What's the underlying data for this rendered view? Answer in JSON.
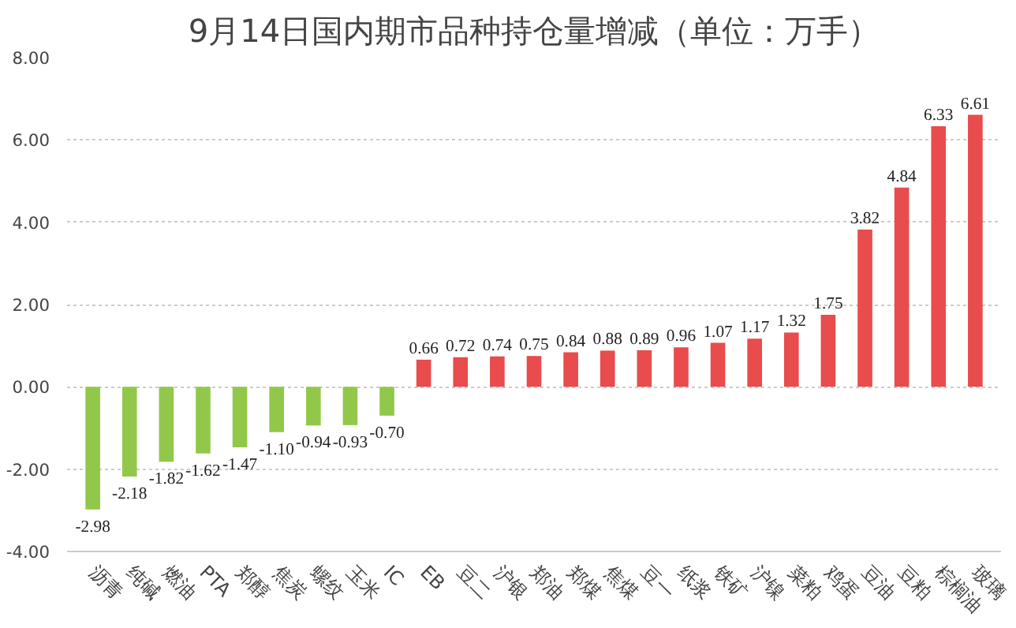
{
  "chart_data": {
    "type": "bar",
    "title": "9月14日国内期市品种持仓量增减（单位：万手）",
    "categories": [
      "沥青",
      "纯碱",
      "燃油",
      "PTA",
      "郑醇",
      "焦炭",
      "螺纹",
      "玉米",
      "IC",
      "EB",
      "豆二",
      "沪银",
      "郑油",
      "郑煤",
      "焦煤",
      "豆一",
      "纸浆",
      "铁矿",
      "沪镍",
      "菜粕",
      "鸡蛋",
      "豆油",
      "豆粕",
      "棕榈油",
      "玻璃"
    ],
    "values": [
      -2.98,
      -2.18,
      -1.82,
      -1.62,
      -1.47,
      -1.1,
      -0.94,
      -0.93,
      -0.7,
      0.66,
      0.72,
      0.74,
      0.75,
      0.84,
      0.88,
      0.89,
      0.96,
      1.07,
      1.17,
      1.32,
      1.75,
      3.82,
      4.84,
      6.33,
      6.61
    ],
    "value_labels": [
      "-2.98",
      "-2.18",
      "-1.82",
      "-1.62",
      "-1.47",
      "-1.10",
      "-0.94",
      "-0.93",
      "-0.70",
      "0.66",
      "0.72",
      "0.74",
      "0.75",
      "0.84",
      "0.88",
      "0.89",
      "0.96",
      "1.07",
      "1.17",
      "1.32",
      "1.75",
      "3.82",
      "4.84",
      "6.33",
      "6.61"
    ],
    "colors": [
      "#92c84a",
      "#92c84a",
      "#92c84a",
      "#92c84a",
      "#92c84a",
      "#92c84a",
      "#92c84a",
      "#92c84a",
      "#92c84a",
      "#e84c4c",
      "#e84c4c",
      "#e84c4c",
      "#e84c4c",
      "#e84c4c",
      "#e84c4c",
      "#e84c4c",
      "#e84c4c",
      "#e84c4c",
      "#e84c4c",
      "#e84c4c",
      "#e84c4c",
      "#e84c4c",
      "#e84c4c",
      "#e84c4c",
      "#e84c4c"
    ],
    "ylim": [
      -4,
      8
    ],
    "yticks": [
      {
        "value": -4,
        "label": "-4.00"
      },
      {
        "value": -2,
        "label": "-2.00"
      },
      {
        "value": 0,
        "label": "0.00"
      },
      {
        "value": 2,
        "label": "2.00"
      },
      {
        "value": 4,
        "label": "4.00"
      },
      {
        "value": 6,
        "label": "6.00"
      },
      {
        "value": 8,
        "label": "8.00"
      }
    ],
    "grid": "y"
  }
}
